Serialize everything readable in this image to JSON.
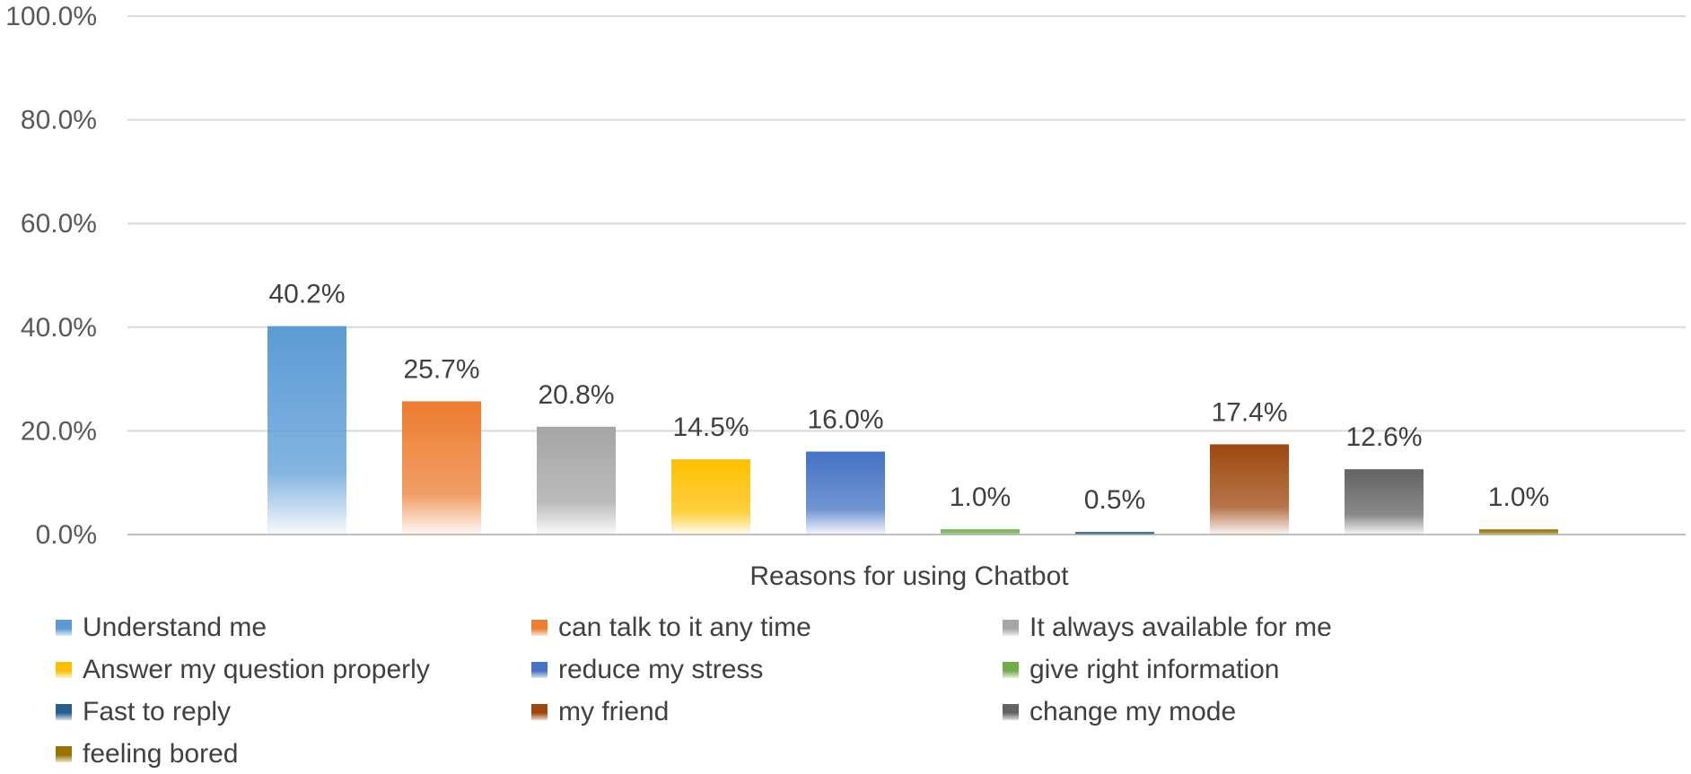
{
  "chart_data": {
    "type": "bar",
    "xlabel": "Reasons for using Chatbot",
    "ylabel": "",
    "ylim": [
      0,
      100
    ],
    "y_ticks": [
      "0.0%",
      "20.0%",
      "40.0%",
      "60.0%",
      "80.0%",
      "100.0%"
    ],
    "grid": true,
    "legend_position": "bottom",
    "series": [
      {
        "name": "Understand me",
        "value": 40.2,
        "label": "40.2%",
        "color": "#5B9BD5"
      },
      {
        "name": "can talk to it any time",
        "value": 25.7,
        "label": "25.7%",
        "color": "#ED7D31"
      },
      {
        "name": "It always available for me",
        "value": 20.8,
        "label": "20.8%",
        "color": "#A5A5A5"
      },
      {
        "name": "Answer my question properly",
        "value": 14.5,
        "label": "14.5%",
        "color": "#FFC000"
      },
      {
        "name": "reduce my stress",
        "value": 16.0,
        "label": "16.0%",
        "color": "#4472C4"
      },
      {
        "name": "give right information",
        "value": 1.0,
        "label": "1.0%",
        "color": "#70AD47"
      },
      {
        "name": "Fast to reply",
        "value": 0.5,
        "label": "0.5%",
        "color": "#255E91"
      },
      {
        "name": "my friend",
        "value": 17.4,
        "label": "17.4%",
        "color": "#9E480E"
      },
      {
        "name": "change my mode",
        "value": 12.6,
        "label": "12.6%",
        "color": "#636363"
      },
      {
        "name": "feeling bored",
        "value": 1.0,
        "label": "1.0%",
        "color": "#997300"
      }
    ]
  }
}
